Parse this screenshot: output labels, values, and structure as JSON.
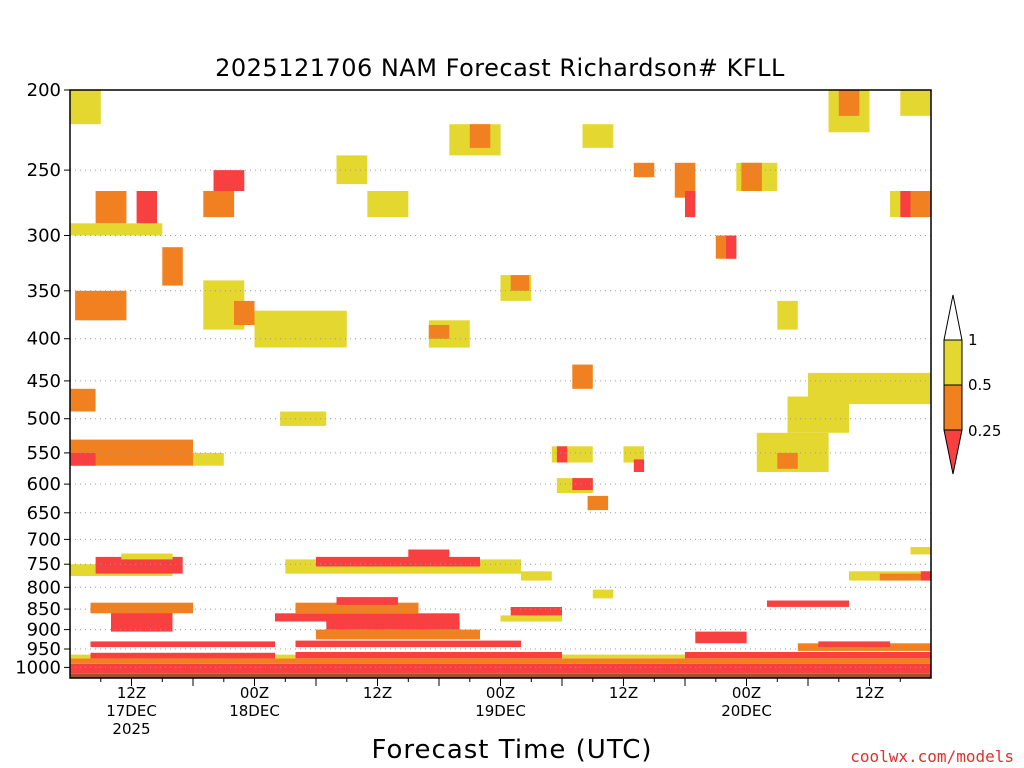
{
  "chart_data": {
    "type": "heatmap",
    "title": "2025121706 NAM Forecast Richardson# KFLL",
    "xlabel": "Forecast Time (UTC)",
    "ylabel": "",
    "credit": "coolwx.com/models",
    "y_axis": {
      "scale": "pressure",
      "range_hpa": [
        1030,
        200
      ],
      "ticks": [
        "200",
        "250",
        "300",
        "350",
        "400",
        "450",
        "500",
        "550",
        "600",
        "650",
        "700",
        "750",
        "800",
        "850",
        "900",
        "950",
        "1000"
      ]
    },
    "x_axis": {
      "range_hours": [
        0,
        84
      ],
      "ticks": [
        {
          "hour": 6,
          "line1": "12Z",
          "line2": "17DEC",
          "line3": "2025"
        },
        {
          "hour": 18,
          "line1": "00Z",
          "line2": "18DEC",
          "line3": ""
        },
        {
          "hour": 30,
          "line1": "12Z",
          "line2": "",
          "line3": ""
        },
        {
          "hour": 42,
          "line1": "00Z",
          "line2": "19DEC",
          "line3": ""
        },
        {
          "hour": 54,
          "line1": "12Z",
          "line2": "",
          "line3": ""
        },
        {
          "hour": 66,
          "line1": "00Z",
          "line2": "20DEC",
          "line3": ""
        },
        {
          "hour": 78,
          "line1": "12Z",
          "line2": "",
          "line3": ""
        }
      ]
    },
    "legend": {
      "position": "right",
      "labels": [
        "1",
        "0.5",
        "0.25"
      ],
      "bins": [
        {
          "range": "> 1",
          "color": "#ffffff"
        },
        {
          "range": "0.5 - 1",
          "color": "#e4d830"
        },
        {
          "range": "0.25 - 0.5",
          "color": "#f08020"
        },
        {
          "range": "< 0.25",
          "color": "#f84040"
        }
      ]
    },
    "colors": {
      "low": "#f84040",
      "mid": "#f08020",
      "high": "#e4d830",
      "ground": "#a0522d"
    },
    "regions": [
      {
        "h0": 0.0,
        "h1": 3.0,
        "p0": 220,
        "p1": 200,
        "cat": "high"
      },
      {
        "h0": 0.0,
        "h1": 9.0,
        "p0": 300,
        "p1": 290,
        "cat": "high"
      },
      {
        "h0": 2.5,
        "h1": 5.5,
        "p0": 290,
        "p1": 265,
        "cat": "mid"
      },
      {
        "h0": 6.5,
        "h1": 8.5,
        "p0": 290,
        "p1": 265,
        "cat": "low"
      },
      {
        "h0": 9.0,
        "h1": 11.0,
        "p0": 345,
        "p1": 310,
        "cat": "mid"
      },
      {
        "h0": 0.5,
        "h1": 5.5,
        "p0": 380,
        "p1": 350,
        "cat": "mid"
      },
      {
        "h0": 13.0,
        "h1": 17.0,
        "p0": 390,
        "p1": 340,
        "cat": "high"
      },
      {
        "h0": 14.0,
        "h1": 17.0,
        "p0": 265,
        "p1": 250,
        "cat": "low"
      },
      {
        "h0": 13.0,
        "h1": 16.0,
        "p0": 285,
        "p1": 265,
        "cat": "mid"
      },
      {
        "h0": 16.0,
        "h1": 18.0,
        "p0": 385,
        "p1": 360,
        "cat": "mid"
      },
      {
        "h0": 0.0,
        "h1": 2.5,
        "p0": 490,
        "p1": 460,
        "cat": "mid"
      },
      {
        "h0": 0.0,
        "h1": 12.0,
        "p0": 570,
        "p1": 530,
        "cat": "mid"
      },
      {
        "h0": 0.0,
        "h1": 2.5,
        "p0": 570,
        "p1": 550,
        "cat": "low"
      },
      {
        "h0": 12.0,
        "h1": 15.0,
        "p0": 570,
        "p1": 550,
        "cat": "high"
      },
      {
        "h0": 18.0,
        "h1": 27.0,
        "p0": 410,
        "p1": 370,
        "cat": "high"
      },
      {
        "h0": 20.5,
        "h1": 25.0,
        "p0": 510,
        "p1": 490,
        "cat": "high"
      },
      {
        "h0": 26.0,
        "h1": 29.0,
        "p0": 260,
        "p1": 240,
        "cat": "high"
      },
      {
        "h0": 29.0,
        "h1": 33.0,
        "p0": 285,
        "p1": 265,
        "cat": "high"
      },
      {
        "h0": 35.0,
        "h1": 39.0,
        "p0": 410,
        "p1": 380,
        "cat": "high"
      },
      {
        "h0": 35.0,
        "h1": 37.0,
        "p0": 400,
        "p1": 385,
        "cat": "mid"
      },
      {
        "h0": 37.0,
        "h1": 42.0,
        "p0": 240,
        "p1": 220,
        "cat": "high"
      },
      {
        "h0": 39.0,
        "h1": 41.0,
        "p0": 235,
        "p1": 220,
        "cat": "mid"
      },
      {
        "h0": 42.0,
        "h1": 45.0,
        "p0": 360,
        "p1": 335,
        "cat": "high"
      },
      {
        "h0": 43.0,
        "h1": 44.8,
        "p0": 350,
        "p1": 335,
        "cat": "mid"
      },
      {
        "h0": 49.0,
        "h1": 51.0,
        "p0": 460,
        "p1": 430,
        "cat": "mid"
      },
      {
        "h0": 47.0,
        "h1": 51.0,
        "p0": 565,
        "p1": 540,
        "cat": "high"
      },
      {
        "h0": 47.5,
        "h1": 48.5,
        "p0": 565,
        "p1": 540,
        "cat": "low"
      },
      {
        "h0": 47.5,
        "h1": 51.0,
        "p0": 615,
        "p1": 590,
        "cat": "high"
      },
      {
        "h0": 49.0,
        "h1": 51.0,
        "p0": 610,
        "p1": 590,
        "cat": "low"
      },
      {
        "h0": 50.5,
        "h1": 52.5,
        "p0": 645,
        "p1": 620,
        "cat": "mid"
      },
      {
        "h0": 50.0,
        "h1": 53.0,
        "p0": 235,
        "p1": 220,
        "cat": "high"
      },
      {
        "h0": 54.0,
        "h1": 56.0,
        "p0": 565,
        "p1": 540,
        "cat": "high"
      },
      {
        "h0": 55.0,
        "h1": 56.0,
        "p0": 580,
        "p1": 560,
        "cat": "low"
      },
      {
        "h0": 55.0,
        "h1": 57.0,
        "p0": 255,
        "p1": 245,
        "cat": "mid"
      },
      {
        "h0": 59.0,
        "h1": 61.0,
        "p0": 270,
        "p1": 245,
        "cat": "mid"
      },
      {
        "h0": 60.0,
        "h1": 61.0,
        "p0": 285,
        "p1": 265,
        "cat": "low"
      },
      {
        "h0": 63.0,
        "h1": 65.0,
        "p0": 320,
        "p1": 300,
        "cat": "mid"
      },
      {
        "h0": 64.0,
        "h1": 65.0,
        "p0": 320,
        "p1": 300,
        "cat": "low"
      },
      {
        "h0": 65.0,
        "h1": 69.0,
        "p0": 265,
        "p1": 245,
        "cat": "high"
      },
      {
        "h0": 65.5,
        "h1": 67.5,
        "p0": 265,
        "p1": 245,
        "cat": "mid"
      },
      {
        "h0": 69.0,
        "h1": 71.0,
        "p0": 390,
        "p1": 360,
        "cat": "high"
      },
      {
        "h0": 67.0,
        "h1": 74.0,
        "p0": 580,
        "p1": 520,
        "cat": "high"
      },
      {
        "h0": 69.0,
        "h1": 71.0,
        "p0": 575,
        "p1": 550,
        "cat": "mid"
      },
      {
        "h0": 70.0,
        "h1": 76.0,
        "p0": 520,
        "p1": 470,
        "cat": "high"
      },
      {
        "h0": 72.0,
        "h1": 84.0,
        "p0": 480,
        "p1": 440,
        "cat": "high"
      },
      {
        "h0": 74.0,
        "h1": 78.0,
        "p0": 225,
        "p1": 200,
        "cat": "high"
      },
      {
        "h0": 75.0,
        "h1": 77.0,
        "p0": 215,
        "p1": 200,
        "cat": "mid"
      },
      {
        "h0": 81.0,
        "h1": 84.0,
        "p0": 215,
        "p1": 200,
        "cat": "high"
      },
      {
        "h0": 80.0,
        "h1": 84.0,
        "p0": 285,
        "p1": 265,
        "cat": "high"
      },
      {
        "h0": 81.0,
        "h1": 82.0,
        "p0": 285,
        "p1": 265,
        "cat": "low"
      },
      {
        "h0": 82.0,
        "h1": 84.0,
        "p0": 285,
        "p1": 265,
        "cat": "mid"
      },
      {
        "h0": 0.0,
        "h1": 84.0,
        "p0": 1030,
        "p1": 1018,
        "cat": "ground"
      },
      {
        "h0": 0.0,
        "h1": 84.0,
        "p0": 1018,
        "p1": 990,
        "cat": "low"
      },
      {
        "h0": 0.0,
        "h1": 84.0,
        "p0": 990,
        "p1": 975,
        "cat": "mid"
      },
      {
        "h0": 0.0,
        "h1": 84.0,
        "p0": 975,
        "p1": 965,
        "cat": "high"
      },
      {
        "h0": 2.0,
        "h1": 20.0,
        "p0": 975,
        "p1": 960,
        "cat": "low"
      },
      {
        "h0": 22.0,
        "h1": 48.0,
        "p0": 975,
        "p1": 958,
        "cat": "low"
      },
      {
        "h0": 60.0,
        "h1": 84.0,
        "p0": 975,
        "p1": 958,
        "cat": "low"
      },
      {
        "h0": 2.0,
        "h1": 20.0,
        "p0": 945,
        "p1": 930,
        "cat": "low"
      },
      {
        "h0": 22.0,
        "h1": 44.0,
        "p0": 945,
        "p1": 928,
        "cat": "low"
      },
      {
        "h0": 24.0,
        "h1": 40.0,
        "p0": 925,
        "p1": 900,
        "cat": "mid"
      },
      {
        "h0": 25.0,
        "h1": 38.0,
        "p0": 900,
        "p1": 880,
        "cat": "low"
      },
      {
        "h0": 4.0,
        "h1": 10.0,
        "p0": 905,
        "p1": 855,
        "cat": "low"
      },
      {
        "h0": 2.0,
        "h1": 12.0,
        "p0": 860,
        "p1": 835,
        "cat": "mid"
      },
      {
        "h0": 20.0,
        "h1": 38.0,
        "p0": 880,
        "p1": 860,
        "cat": "low"
      },
      {
        "h0": 22.0,
        "h1": 34.0,
        "p0": 860,
        "p1": 835,
        "cat": "mid"
      },
      {
        "h0": 26.0,
        "h1": 32.0,
        "p0": 840,
        "p1": 822,
        "cat": "low"
      },
      {
        "h0": 0.0,
        "h1": 10.0,
        "p0": 775,
        "p1": 750,
        "cat": "high"
      },
      {
        "h0": 2.5,
        "h1": 11.0,
        "p0": 770,
        "p1": 735,
        "cat": "low"
      },
      {
        "h0": 5.0,
        "h1": 10.0,
        "p0": 740,
        "p1": 728,
        "cat": "high"
      },
      {
        "h0": 21.0,
        "h1": 44.0,
        "p0": 770,
        "p1": 740,
        "cat": "high"
      },
      {
        "h0": 24.0,
        "h1": 40.0,
        "p0": 755,
        "p1": 735,
        "cat": "low"
      },
      {
        "h0": 33.0,
        "h1": 37.0,
        "p0": 745,
        "p1": 720,
        "cat": "low"
      },
      {
        "h0": 44.0,
        "h1": 47.0,
        "p0": 785,
        "p1": 765,
        "cat": "high"
      },
      {
        "h0": 43.0,
        "h1": 48.0,
        "p0": 870,
        "p1": 845,
        "cat": "low"
      },
      {
        "h0": 42.0,
        "h1": 48.0,
        "p0": 880,
        "p1": 865,
        "cat": "high"
      },
      {
        "h0": 51.0,
        "h1": 53.0,
        "p0": 825,
        "p1": 805,
        "cat": "high"
      },
      {
        "h0": 61.0,
        "h1": 66.0,
        "p0": 935,
        "p1": 905,
        "cat": "low"
      },
      {
        "h0": 71.0,
        "h1": 84.0,
        "p0": 955,
        "p1": 935,
        "cat": "mid"
      },
      {
        "h0": 73.0,
        "h1": 80.0,
        "p0": 945,
        "p1": 930,
        "cat": "low"
      },
      {
        "h0": 68.0,
        "h1": 76.0,
        "p0": 845,
        "p1": 830,
        "cat": "low"
      },
      {
        "h0": 76.0,
        "h1": 84.0,
        "p0": 785,
        "p1": 765,
        "cat": "high"
      },
      {
        "h0": 79.0,
        "h1": 84.0,
        "p0": 785,
        "p1": 770,
        "cat": "mid"
      },
      {
        "h0": 83.0,
        "h1": 84.0,
        "p0": 785,
        "p1": 765,
        "cat": "low"
      },
      {
        "h0": 82.0,
        "h1": 84.0,
        "p0": 730,
        "p1": 715,
        "cat": "high"
      }
    ]
  }
}
